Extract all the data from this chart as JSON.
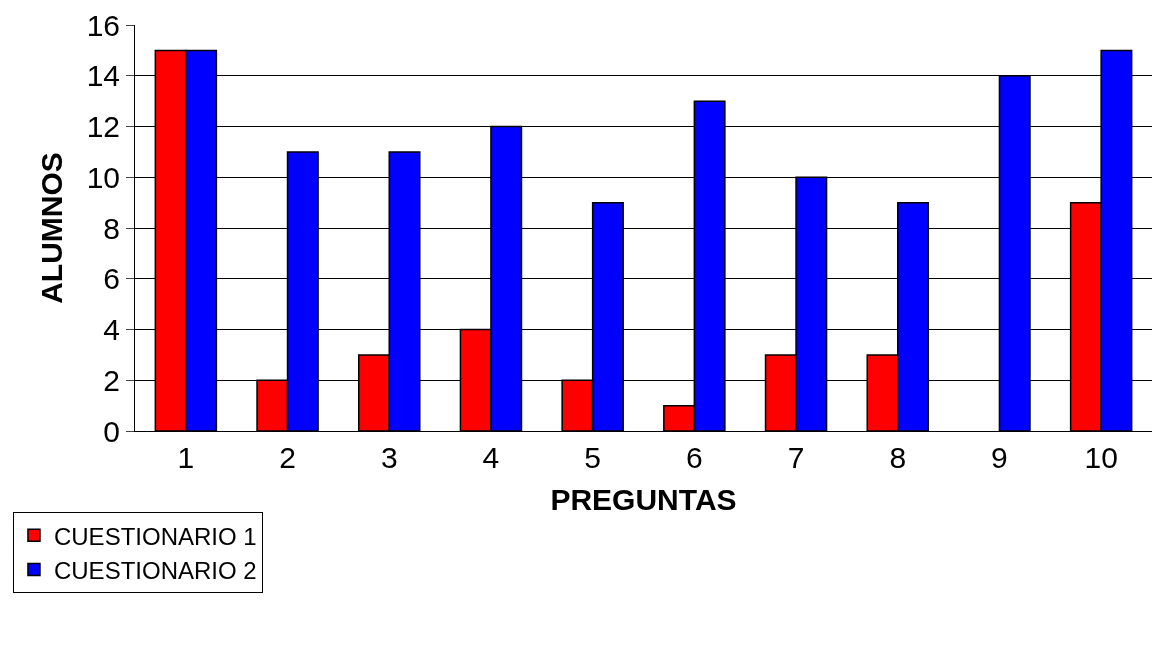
{
  "chart_data": {
    "type": "bar",
    "xlabel": "PREGUNTAS",
    "ylabel": "ALUMNOS",
    "categories": [
      "1",
      "2",
      "3",
      "4",
      "5",
      "6",
      "7",
      "8",
      "9",
      "10"
    ],
    "series": [
      {
        "name": "CUESTIONARIO 1",
        "color": "#ff0000",
        "values": [
          15,
          2,
          3,
          4,
          2,
          1,
          3,
          3,
          null,
          9
        ]
      },
      {
        "name": "CUESTIONARIO 2",
        "color": "#0000ff",
        "values": [
          15,
          11,
          11,
          12,
          9,
          13,
          10,
          9,
          14,
          15
        ]
      }
    ],
    "ylim": [
      0,
      16
    ],
    "yticks": [
      0,
      2,
      4,
      6,
      8,
      10,
      12,
      14,
      16
    ],
    "grid": "y",
    "legend": "bottom left"
  }
}
